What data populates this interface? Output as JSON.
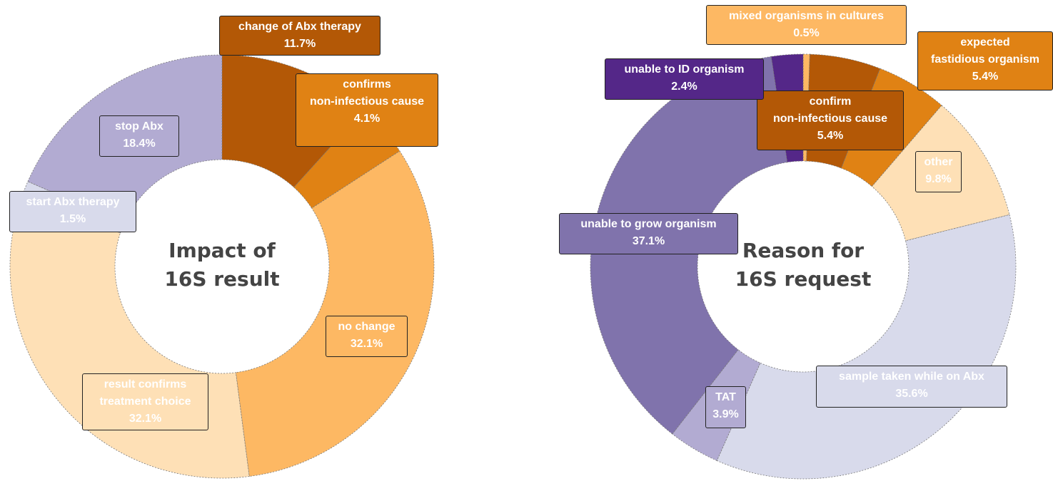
{
  "chart_data": [
    {
      "type": "donut",
      "title": "Impact of\n16S result",
      "categories": [
        "change of Abx therapy",
        "confirms\nnon-infectious cause",
        "no change",
        "result confirms\ntreatment choice",
        "start Abx therapy",
        "stop Abx"
      ],
      "values": [
        11.7,
        4.1,
        32.1,
        32.1,
        1.5,
        18.4
      ],
      "value_labels": [
        "11.7%",
        "4.1%",
        "32.1%",
        "32.1%",
        "1.5%",
        "18.4%"
      ],
      "colors": [
        "#b35806",
        "#e08214",
        "#fdb863",
        "#fee0b6",
        "#d8daeb",
        "#b2abd2"
      ]
    },
    {
      "type": "donut",
      "title": "Reason for\n16S request",
      "categories": [
        "mixed organisms in cultures",
        "confirm\nnon-infectious cause",
        "expected\nfastidious organism",
        "other",
        "sample taken while on Abx",
        "TAT",
        "unable to grow organism",
        "unable to ID organism"
      ],
      "values": [
        0.5,
        5.4,
        5.4,
        9.8,
        35.6,
        3.9,
        37.1,
        2.4
      ],
      "value_labels": [
        "0.5%",
        "5.4%",
        "5.4%",
        "9.8%",
        "35.6%",
        "3.9%",
        "37.1%",
        "2.4%"
      ],
      "colors": [
        "#fdb863",
        "#b35806",
        "#e08214",
        "#fee0b6",
        "#d8daeb",
        "#b2abd2",
        "#8073ac",
        "#542788"
      ]
    }
  ]
}
